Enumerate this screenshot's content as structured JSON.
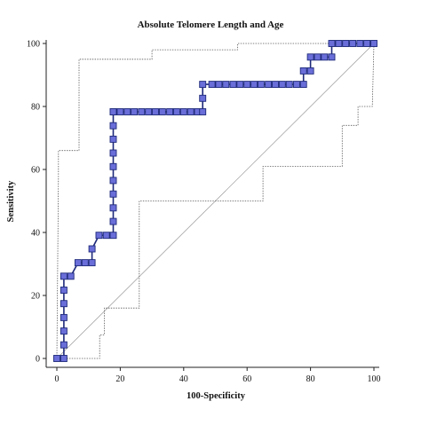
{
  "chart_data": {
    "type": "line",
    "title": "Absolute Telomere Length and Age",
    "xlabel": "100-Specificity",
    "ylabel": "Sensitivity",
    "xlim": [
      0,
      100
    ],
    "ylim": [
      0,
      100
    ],
    "xticks": [
      0,
      20,
      40,
      60,
      80,
      100
    ],
    "yticks": [
      0,
      20,
      40,
      60,
      80,
      100
    ],
    "x_tick_labels": [
      "0",
      "20",
      "40",
      "60",
      "80",
      "100"
    ],
    "y_tick_labels": [
      "0",
      "20",
      "40",
      "60",
      "80",
      "100"
    ],
    "grid": false,
    "legend": "none",
    "colors": {
      "roc_line": "#1e2a7a",
      "roc_marker": "#6a6ed8",
      "ci_lines": "#555555",
      "reference": "#999999"
    },
    "series": [
      {
        "role": "roc_curve",
        "style": "solid line with square markers",
        "x": [
          0,
          2.2,
          2.2,
          2.2,
          2.2,
          2.2,
          2.2,
          2.2,
          4.4,
          6.7,
          8.9,
          11.1,
          11.1,
          13.3,
          15.6,
          17.8,
          17.8,
          17.8,
          17.8,
          17.8,
          17.8,
          17.8,
          17.8,
          17.8,
          17.8,
          17.8,
          20.0,
          22.2,
          24.4,
          26.7,
          28.9,
          31.1,
          33.3,
          35.6,
          37.8,
          40.0,
          42.2,
          44.4,
          46.0,
          46.0,
          46.0,
          48.9,
          51.1,
          53.3,
          55.6,
          57.8,
          60.0,
          62.2,
          64.4,
          66.7,
          68.9,
          71.1,
          73.3,
          75.6,
          77.8,
          77.8,
          80.0,
          80.0,
          82.2,
          84.4,
          86.7,
          86.7,
          88.9,
          91.1,
          93.3,
          95.6,
          97.8,
          100
        ],
        "y": [
          0,
          0,
          4.3,
          8.7,
          13.0,
          17.4,
          21.7,
          26.1,
          26.1,
          30.4,
          30.4,
          30.4,
          34.8,
          39.1,
          39.1,
          39.1,
          43.5,
          47.8,
          52.2,
          56.5,
          60.9,
          65.2,
          69.6,
          73.9,
          78.3,
          78.3,
          78.3,
          78.3,
          78.3,
          78.3,
          78.3,
          78.3,
          78.3,
          78.3,
          78.3,
          78.3,
          78.3,
          78.3,
          78.3,
          82.6,
          87.0,
          87.0,
          87.0,
          87.0,
          87.0,
          87.0,
          87.0,
          87.0,
          87.0,
          87.0,
          87.0,
          87.0,
          87.0,
          87.0,
          87.0,
          91.3,
          91.3,
          95.7,
          95.7,
          95.7,
          95.7,
          100,
          100,
          100,
          100,
          100,
          100,
          100
        ]
      },
      {
        "role": "upper_confidence_bound",
        "style": "dotted",
        "x": [
          0,
          0.5,
          0.5,
          2.5,
          2.5,
          7,
          7,
          30,
          30,
          57,
          57,
          76,
          100
        ],
        "y": [
          0,
          58,
          66,
          66,
          66,
          66,
          95,
          95,
          98,
          98,
          100,
          100,
          100
        ]
      },
      {
        "role": "lower_confidence_bound",
        "style": "dotted",
        "x": [
          0,
          13.5,
          13.5,
          15,
          15,
          26,
          26,
          37,
          37,
          65,
          65,
          90,
          90,
          95,
          95,
          99.5,
          100
        ],
        "y": [
          0,
          0,
          7.5,
          7.5,
          16,
          16,
          50,
          50,
          50,
          50,
          61,
          61,
          74,
          74,
          80,
          80,
          100
        ]
      },
      {
        "role": "reference_line",
        "style": "thin solid",
        "x": [
          0,
          100
        ],
        "y": [
          0,
          100
        ]
      }
    ]
  }
}
